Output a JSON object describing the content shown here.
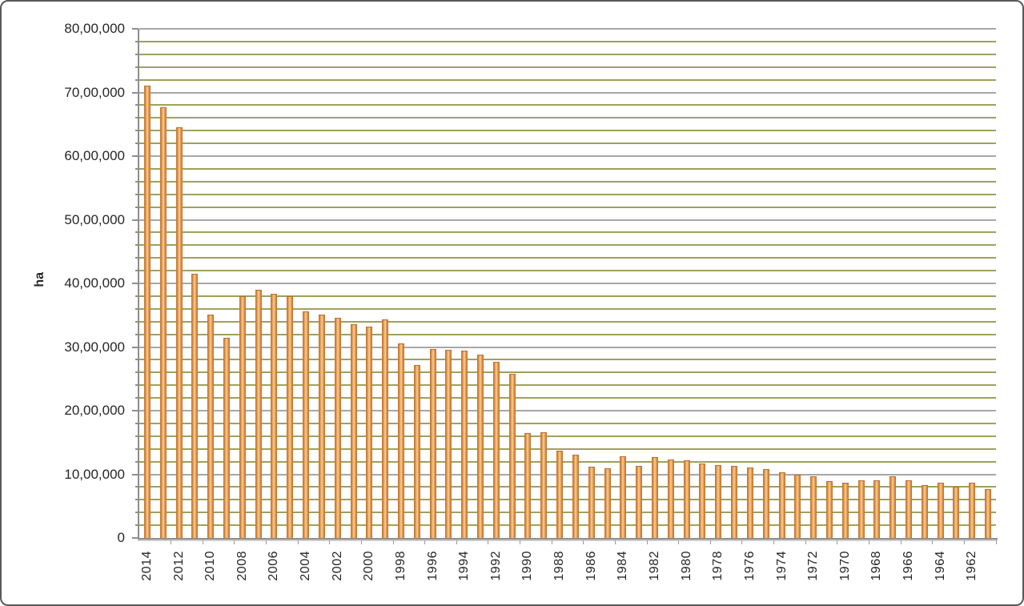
{
  "chart_data": {
    "type": "bar",
    "title": "",
    "ylabel": "ha",
    "unit": "hectares",
    "legend": "none",
    "grid": {
      "major_horizontal": true,
      "minor_horizontal": true
    },
    "ylim": [
      0,
      8000000
    ],
    "y_major_step": 1000000,
    "y_minor_step": 200000,
    "y_tick_labels": [
      "0",
      "10,00,000",
      "20,00,000",
      "30,00,000",
      "40,00,000",
      "50,00,000",
      "60,00,000",
      "70,00,000",
      "80,00,000"
    ],
    "x_label_interval": 2,
    "x_label_rotation_deg": 90,
    "x_tick_labels_shown": [
      2014,
      2012,
      2010,
      2008,
      2006,
      2004,
      2002,
      2000,
      1998,
      1996,
      1994,
      1992,
      1990,
      1988,
      1986,
      1984,
      1982,
      1980,
      1978,
      1976,
      1974,
      1972,
      1970,
      1968,
      1966,
      1964,
      1962
    ],
    "categories": [
      2014,
      2013,
      2012,
      2011,
      2010,
      2009,
      2008,
      2007,
      2006,
      2005,
      2004,
      2003,
      2002,
      2001,
      2000,
      1999,
      1998,
      1997,
      1996,
      1995,
      1994,
      1993,
      1992,
      1991,
      1990,
      1989,
      1988,
      1987,
      1986,
      1985,
      1984,
      1983,
      1982,
      1981,
      1980,
      1979,
      1978,
      1977,
      1976,
      1975,
      1974,
      1973,
      1972,
      1971,
      1970,
      1969,
      1968,
      1967,
      1966,
      1965,
      1964,
      1963,
      1962,
      1961
    ],
    "values": [
      7100000,
      6760000,
      6440000,
      4140000,
      3500000,
      3130000,
      3790000,
      3890000,
      3830000,
      3790000,
      3550000,
      3500000,
      3450000,
      3340000,
      3310000,
      3420000,
      3050000,
      2700000,
      2950000,
      2940000,
      2930000,
      2870000,
      2760000,
      2560000,
      1640000,
      1650000,
      1360000,
      1300000,
      1110000,
      1080000,
      1270000,
      1120000,
      1260000,
      1220000,
      1210000,
      1160000,
      1130000,
      1120000,
      1100000,
      1070000,
      1020000,
      980000,
      950000,
      880000,
      850000,
      890000,
      890000,
      950000,
      890000,
      820000,
      850000,
      790000,
      850000,
      760000
    ]
  },
  "colors": {
    "background": "#ffffff",
    "frame_border": "#595959",
    "bar_edge": "#b96f2d",
    "bar_mid": "#eca960",
    "bar_highlight": "#f6d2a6",
    "gridline_major": "#a7a7a7",
    "gridline_minor": "#a0a05e",
    "axis_line": "#8e8e8e",
    "text": "#262626"
  }
}
